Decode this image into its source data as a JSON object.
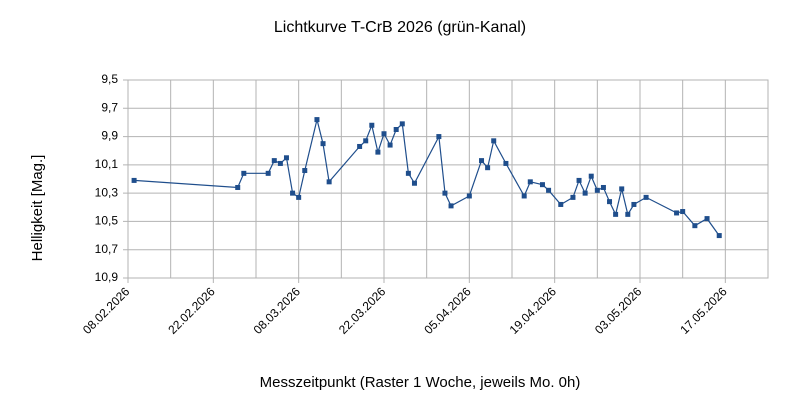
{
  "chart_data": {
    "type": "line",
    "title": "Lichtkurve T-CrB 2026 (grün-Kanal)",
    "xlabel": "Messzeitpunkt (Raster 1 Woche, jeweils Mo. 0h)",
    "ylabel": "Helligkeit [Mag.]",
    "x": [
      "09.02.2026",
      "26.02.2026",
      "27.02.2026",
      "03.03.2026",
      "04.03.2026",
      "05.03.2026",
      "06.03.2026",
      "07.03.2026",
      "08.03.2026",
      "09.03.2026",
      "11.03.2026",
      "12.03.2026",
      "13.03.2026",
      "18.03.2026",
      "19.03.2026",
      "20.03.2026",
      "21.03.2026",
      "22.03.2026",
      "23.03.2026",
      "24.03.2026",
      "25.03.2026",
      "26.03.2026",
      "27.03.2026",
      "31.03.2026",
      "01.04.2026",
      "02.04.2026",
      "05.04.2026",
      "07.04.2026",
      "08.04.2026",
      "09.04.2026",
      "11.04.2026",
      "14.04.2026",
      "15.04.2026",
      "17.04.2026",
      "18.04.2026",
      "20.04.2026",
      "22.04.2026",
      "23.04.2026",
      "24.04.2026",
      "25.04.2026",
      "26.04.2026",
      "27.04.2026",
      "28.04.2026",
      "29.04.2026",
      "30.04.2026",
      "01.05.2026",
      "02.05.2026",
      "04.05.2026",
      "09.05.2026",
      "10.05.2026",
      "12.05.2026",
      "14.05.2026",
      "16.05.2026"
    ],
    "series": [
      {
        "name": "grün",
        "color": "#1f4e8c",
        "values": [
          10.21,
          10.26,
          10.16,
          10.16,
          10.07,
          10.09,
          10.05,
          10.3,
          10.33,
          10.14,
          9.78,
          9.95,
          10.22,
          9.97,
          9.93,
          9.82,
          10.01,
          9.88,
          9.96,
          9.85,
          9.81,
          10.16,
          10.23,
          9.9,
          10.3,
          10.39,
          10.32,
          10.07,
          10.12,
          9.93,
          10.09,
          10.32,
          10.22,
          10.24,
          10.28,
          10.38,
          10.33,
          10.21,
          10.3,
          10.18,
          10.28,
          10.26,
          10.36,
          10.45,
          10.27,
          10.45,
          10.38,
          10.33,
          10.44,
          10.43,
          10.53,
          10.48,
          10.6
        ]
      }
    ],
    "xlim": [
      "08.02.2026",
      "24.05.2026"
    ],
    "xticks": [
      "08.02.2026",
      "22.02.2026",
      "08.03.2026",
      "22.03.2026",
      "05.04.2026",
      "19.04.2026",
      "03.05.2026",
      "17.05.2026"
    ],
    "xgridlines": [
      "15.02.2026",
      "01.03.2026",
      "15.03.2026",
      "29.03.2026",
      "12.04.2026",
      "26.04.2026",
      "10.05.2026",
      "24.05.2026"
    ],
    "ylim": [
      10.9,
      9.5
    ],
    "yticks": [
      {
        "value": 9.5,
        "label": "9,5"
      },
      {
        "value": 9.7,
        "label": "9,7"
      },
      {
        "value": 9.9,
        "label": "9,9"
      },
      {
        "value": 10.1,
        "label": "10,1"
      },
      {
        "value": 10.3,
        "label": "10,3"
      },
      {
        "value": 10.5,
        "label": "10,5"
      },
      {
        "value": 10.7,
        "label": "10,7"
      },
      {
        "value": 10.9,
        "label": "10,9"
      }
    ],
    "grid": true
  }
}
